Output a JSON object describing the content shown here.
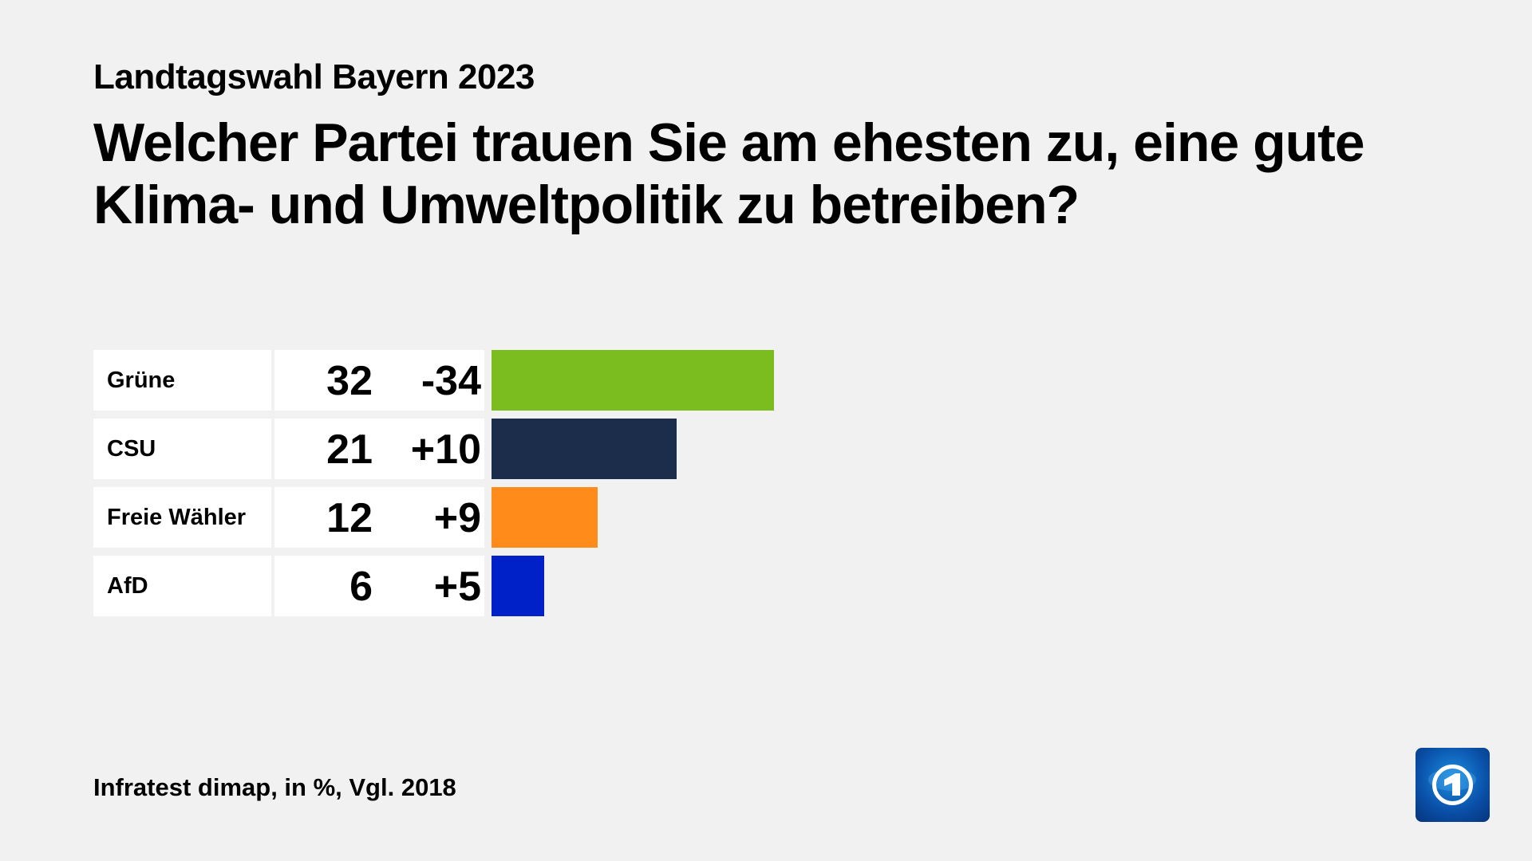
{
  "header": {
    "kicker": "Landtagswahl Bayern 2023",
    "title": "Welcher Partei trauen Sie am ehesten zu, eine gute Klima- und Umweltpolitik zu betreiben?"
  },
  "chart_data": {
    "type": "bar",
    "orientation": "horizontal",
    "categories": [
      "Grüne",
      "CSU",
      "Freie Wähler",
      "AfD"
    ],
    "values": [
      32,
      21,
      12,
      6
    ],
    "changes": [
      "-34",
      "+10",
      "+9",
      "+5"
    ],
    "colors": [
      "#7bbd1e",
      "#1b2d4a",
      "#ff8c1a",
      "#0020c8"
    ],
    "unit": "%",
    "grid": false
  },
  "footer": {
    "source": "Infratest dimap, in %, Vgl. 2018"
  },
  "logo": {
    "icon": "tagesschau-logo-icon",
    "text": "1"
  }
}
